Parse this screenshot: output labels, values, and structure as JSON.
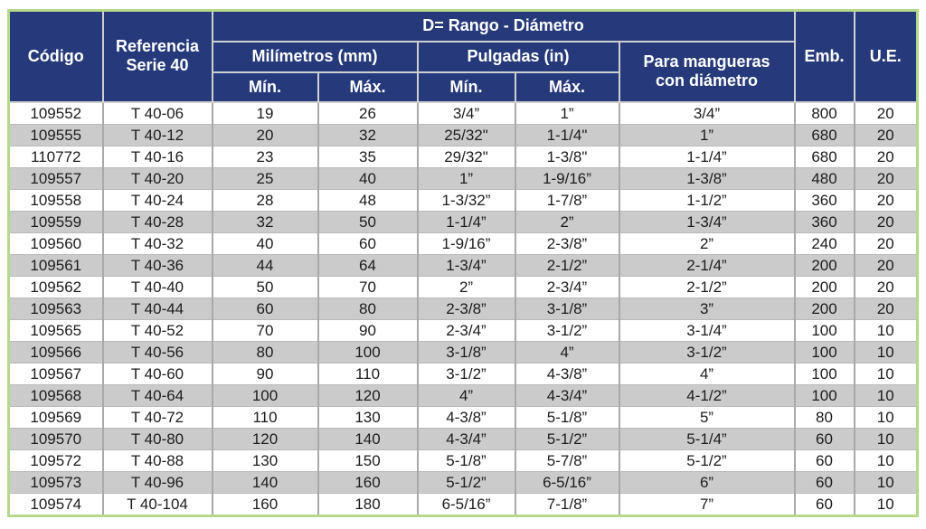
{
  "table": {
    "colors": {
      "header_bg": "#263a7b",
      "header_text": "#ffffff",
      "row_stripe": "#cbcbcb",
      "row_white": "#ffffff",
      "outer_border": "#b5d98c",
      "grid_line": "#a9a9a9",
      "data_text": "#1c1c1c"
    },
    "headers": {
      "codigo": "Código",
      "referencia": "Referencia\nSerie 40",
      "rango": "D= Rango - Diámetro",
      "milimetros": "Milímetros (mm)",
      "pulgadas": "Pulgadas (in)",
      "min_mm": "Mín.",
      "max_mm": "Máx.",
      "min_in": "Mín.",
      "max_in": "Máx.",
      "mangueras": "Para mangueras\ncon diámetro",
      "emb": "Emb.",
      "ue": "U.E."
    },
    "rows": [
      [
        "109552",
        "T 40-06",
        "19",
        "26",
        "3/4”",
        "1”",
        "3/4”",
        "800",
        "20"
      ],
      [
        "109555",
        "T 40-12",
        "20",
        "32",
        "25/32\"",
        "1-1/4\"",
        "1”",
        "680",
        "20"
      ],
      [
        "110772",
        "T 40-16",
        "23",
        "35",
        "29/32\"",
        "1-3/8\"",
        "1-1/4”",
        "680",
        "20"
      ],
      [
        "109557",
        "T 40-20",
        "25",
        "40",
        "1”",
        "1-9/16”",
        "1-3/8”",
        "480",
        "20"
      ],
      [
        "109558",
        "T 40-24",
        "28",
        "48",
        "1-3/32”",
        "1-7/8”",
        "1-1/2”",
        "360",
        "20"
      ],
      [
        "109559",
        "T 40-28",
        "32",
        "50",
        "1-1/4”",
        "2”",
        "1-3/4”",
        "360",
        "20"
      ],
      [
        "109560",
        "T 40-32",
        "40",
        "60",
        "1-9/16”",
        "2-3/8”",
        "2”",
        "240",
        "20"
      ],
      [
        "109561",
        "T 40-36",
        "44",
        "64",
        "1-3/4”",
        "2-1/2”",
        "2-1/4”",
        "200",
        "20"
      ],
      [
        "109562",
        "T 40-40",
        "50",
        "70",
        "2”",
        "2-3/4”",
        "2-1/2”",
        "200",
        "20"
      ],
      [
        "109563",
        "T 40-44",
        "60",
        "80",
        "2-3/8”",
        "3-1/8”",
        "3”",
        "200",
        "20"
      ],
      [
        "109565",
        "T 40-52",
        "70",
        "90",
        "2-3/4”",
        "3-1/2”",
        "3-1/4”",
        "100",
        "10"
      ],
      [
        "109566",
        "T 40-56",
        "80",
        "100",
        "3-1/8”",
        "4”",
        "3-1/2”",
        "100",
        "10"
      ],
      [
        "109567",
        "T 40-60",
        "90",
        "110",
        "3-1/2”",
        "4-3/8”",
        "4”",
        "100",
        "10"
      ],
      [
        "109568",
        "T 40-64",
        "100",
        "120",
        "4”",
        "4-3/4”",
        "4-1/2”",
        "100",
        "10"
      ],
      [
        "109569",
        "T 40-72",
        "110",
        "130",
        "4-3/8”",
        "5-1/8”",
        "5”",
        "80",
        "10"
      ],
      [
        "109570",
        "T 40-80",
        "120",
        "140",
        "4-3/4”",
        "5-1/2”",
        "5-1/4”",
        "60",
        "10"
      ],
      [
        "109572",
        "T 40-88",
        "130",
        "150",
        "5-1/8”",
        "5-7/8”",
        "5-1/2”",
        "60",
        "10"
      ],
      [
        "109573",
        "T 40-96",
        "140",
        "160",
        "5-1/2”",
        "6-5/16”",
        "6”",
        "60",
        "10"
      ],
      [
        "109574",
        "T 40-104",
        "160",
        "180",
        "6-5/16”",
        "7-1/8”",
        "7”",
        "60",
        "10"
      ]
    ]
  }
}
